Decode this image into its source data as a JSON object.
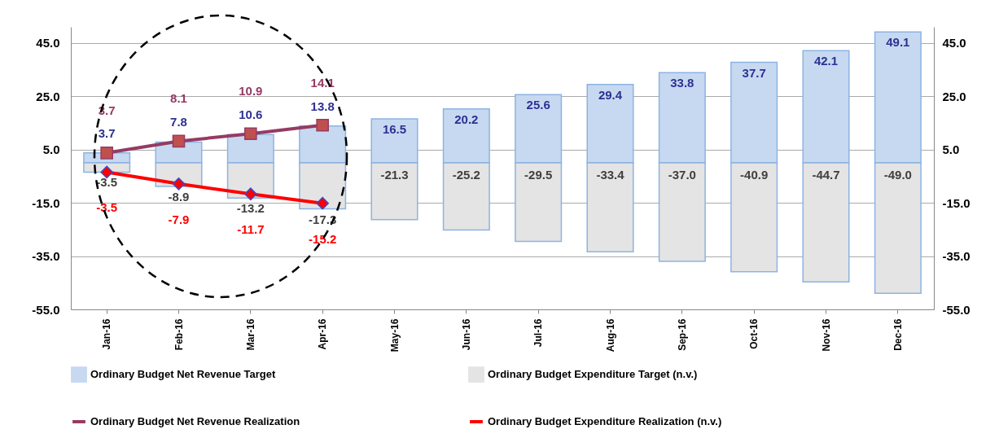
{
  "chart_data": {
    "type": "bar",
    "stacked": true,
    "categories": [
      "Jan-16",
      "Feb-16",
      "Mar-16",
      "Apr-16",
      "May-16",
      "Jun-16",
      "Jul-16",
      "Aug-16",
      "Sep-16",
      "Oct-16",
      "Nov-16",
      "Dec-16"
    ],
    "series": [
      {
        "name": "Ordinary Budget Net Revenue Target",
        "color": "#c6d9f1",
        "values": [
          3.7,
          7.8,
          10.6,
          13.8,
          16.5,
          20.2,
          25.6,
          29.4,
          33.8,
          37.7,
          42.1,
          49.1
        ],
        "value_labels": [
          "3.7",
          "7.8",
          "10.6",
          "13.8",
          "16.5",
          "20.2",
          "25.6",
          "29.4",
          "33.8",
          "37.7",
          "42.1",
          "49.1"
        ]
      },
      {
        "name": "Ordinary Budget Expenditure Target (n.v.)",
        "color": "#e4e4e4",
        "values": [
          -3.5,
          -8.9,
          -13.2,
          -17.3,
          -21.3,
          -25.2,
          -29.5,
          -33.4,
          -37.0,
          -40.9,
          -44.7,
          -49.0
        ],
        "value_labels": [
          "-3.5",
          "-8.9",
          "-13.2",
          "-17.3",
          "-21.3",
          "-25.2",
          "-29.5",
          "-33.4",
          "-37.0",
          "-40.9",
          "-44.7",
          "-49.0"
        ]
      },
      {
        "name": "Ordinary Budget Net Revenue Realization",
        "type": "line",
        "marker": "square",
        "color": "#953b63",
        "values": [
          3.7,
          8.1,
          10.9,
          14.1,
          null,
          null,
          null,
          null,
          null,
          null,
          null,
          null
        ],
        "value_labels": [
          "3.7",
          "8.1",
          "10.9",
          "14.1",
          null,
          null,
          null,
          null,
          null,
          null,
          null,
          null
        ]
      },
      {
        "name": "Ordinary Budget Expenditure Realization (n.v.)",
        "type": "line",
        "marker": "diamond",
        "color": "#ff0000",
        "values": [
          -3.5,
          -7.9,
          -11.7,
          -15.2,
          null,
          null,
          null,
          null,
          null,
          null,
          null,
          null
        ],
        "value_labels": [
          "-3.5",
          "-7.9",
          "-11.7",
          "-15.2",
          null,
          null,
          null,
          null,
          null,
          null,
          null,
          null
        ]
      }
    ],
    "ylim": [
      -55,
      51
    ],
    "yticks": [
      {
        "value": -55,
        "label": "-55.0"
      },
      {
        "value": -35,
        "label": "-35.0"
      },
      {
        "value": -15,
        "label": "-15.0"
      },
      {
        "value": 5,
        "label": "5.0"
      },
      {
        "value": 25,
        "label": "25.0"
      },
      {
        "value": 45,
        "label": "45.0"
      }
    ],
    "y2lim": [
      -55,
      51
    ],
    "y2ticks": [
      {
        "value": -55,
        "label": "-55.0"
      },
      {
        "value": -35,
        "label": "-35.0"
      },
      {
        "value": -15,
        "label": "-15.0"
      },
      {
        "value": 5,
        "label": "5.0"
      },
      {
        "value": 25,
        "label": "25.0"
      },
      {
        "value": 45,
        "label": "45.0"
      }
    ],
    "grid": "y",
    "legend": "bottom"
  }
}
